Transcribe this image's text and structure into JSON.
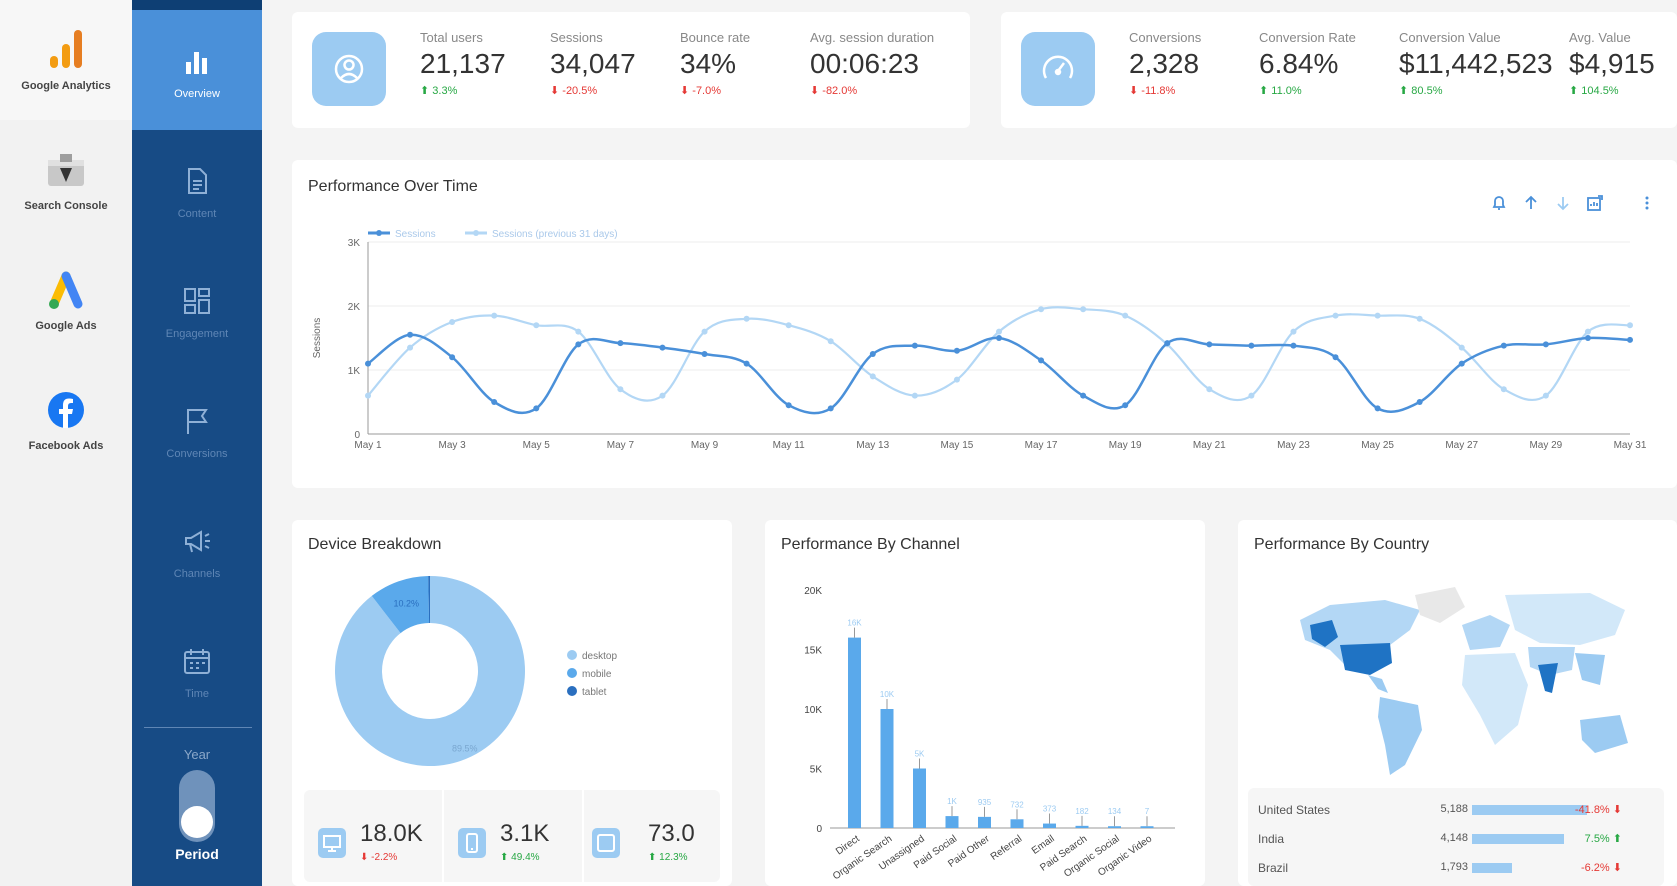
{
  "sources": [
    {
      "label": "Google Analytics",
      "icon": "google-analytics-icon"
    },
    {
      "label": "Search Console",
      "icon": "search-console-icon"
    },
    {
      "label": "Google Ads",
      "icon": "google-ads-icon"
    },
    {
      "label": "Facebook Ads",
      "icon": "facebook-icon"
    }
  ],
  "nav": [
    {
      "label": "Overview",
      "icon": "bar-chart-icon"
    },
    {
      "label": "Content",
      "icon": "document-icon"
    },
    {
      "label": "Engagement",
      "icon": "grid-icon"
    },
    {
      "label": "Conversions",
      "icon": "flag-icon"
    },
    {
      "label": "Channels",
      "icon": "megaphone-icon"
    },
    {
      "label": "Time",
      "icon": "calendar-icon"
    }
  ],
  "toggle": {
    "top_label": "Year",
    "bottom_label": "Period"
  },
  "kpis_left": [
    {
      "label": "Total users",
      "value": "21,137",
      "delta": "3.3%",
      "dir": "up"
    },
    {
      "label": "Sessions",
      "value": "34,047",
      "delta": "-20.5%",
      "dir": "down"
    },
    {
      "label": "Bounce rate",
      "value": "34%",
      "delta": "-7.0%",
      "dir": "down"
    },
    {
      "label": "Avg. session duration",
      "value": "00:06:23",
      "delta": "-82.0%",
      "dir": "down"
    }
  ],
  "kpis_right": [
    {
      "label": "Conversions",
      "value": "2,328",
      "delta": "-11.8%",
      "dir": "down"
    },
    {
      "label": "Conversion Rate",
      "value": "6.84%",
      "delta": "11.0%",
      "dir": "up"
    },
    {
      "label": "Conversion Value",
      "value": "$11,442,523",
      "delta": "80.5%",
      "dir": "up"
    },
    {
      "label": "Avg. Value",
      "value": "$4,915",
      "delta": "104.5%",
      "dir": "up"
    }
  ],
  "colors": {
    "accent": "#4a90d9",
    "light": "#b3d7f5",
    "mid": "#9ccbf2",
    "nav": "#174b85",
    "up": "#27a844",
    "down": "#e53935"
  },
  "chart_data": [
    {
      "type": "line",
      "title": "Performance Over Time",
      "ylabel": "Sessions",
      "ylim": [
        0,
        3000
      ],
      "yticks": [
        "0",
        "1K",
        "2K",
        "3K"
      ],
      "x": [
        "May 1",
        "May 2",
        "May 3",
        "May 4",
        "May 5",
        "May 6",
        "May 7",
        "May 8",
        "May 9",
        "May 10",
        "May 11",
        "May 12",
        "May 13",
        "May 14",
        "May 15",
        "May 16",
        "May 17",
        "May 18",
        "May 19",
        "May 20",
        "May 21",
        "May 22",
        "May 23",
        "May 24",
        "May 25",
        "May 26",
        "May 27",
        "May 28",
        "May 29",
        "May 30",
        "May 31"
      ],
      "xticks": [
        "May 1",
        "May 3",
        "May 5",
        "May 7",
        "May 9",
        "May 11",
        "May 13",
        "May 15",
        "May 17",
        "May 19",
        "May 21",
        "May 23",
        "May 25",
        "May 27",
        "May 29",
        "May 31"
      ],
      "legend": "top-left",
      "grid": true,
      "series": [
        {
          "name": "Sessions",
          "color": "#4a90d9",
          "values": [
            1100,
            1550,
            1200,
            500,
            400,
            1400,
            1420,
            1350,
            1250,
            1100,
            450,
            400,
            1250,
            1380,
            1300,
            1500,
            1150,
            600,
            450,
            1420,
            1400,
            1380,
            1380,
            1200,
            400,
            500,
            1100,
            1380,
            1400,
            1500,
            1470
          ]
        },
        {
          "name": "Sessions (previous 31 days)",
          "color": "#b3d7f5",
          "values": [
            600,
            1350,
            1750,
            1850,
            1700,
            1600,
            700,
            600,
            1600,
            1800,
            1700,
            1450,
            900,
            600,
            850,
            1600,
            1950,
            1950,
            1850,
            1400,
            700,
            600,
            1600,
            1850,
            1850,
            1800,
            1350,
            700,
            600,
            1600,
            1700
          ]
        }
      ]
    },
    {
      "type": "pie",
      "title": "Device Breakdown",
      "legend": "right",
      "labels": [
        "desktop",
        "mobile",
        "tablet"
      ],
      "values": [
        89.5,
        10.2,
        0.3
      ],
      "slice_labels": [
        "89.5%",
        "10.2%",
        ""
      ],
      "colors": [
        "#9ccbf2",
        "#5aa9eb",
        "#2a6fbf"
      ]
    },
    {
      "type": "bar",
      "title": "Performance By Channel",
      "ylim": [
        0,
        20000
      ],
      "yticks": [
        "0",
        "5K",
        "10K",
        "15K",
        "20K"
      ],
      "categories": [
        "Direct",
        "Organic Search",
        "Unassigned",
        "Paid Social",
        "Paid Other",
        "Referral",
        "Email",
        "Paid Search",
        "Organic Social",
        "Organic Video"
      ],
      "values": [
        16000,
        10000,
        5000,
        1000,
        935,
        732,
        373,
        182,
        134,
        7
      ],
      "labels": [
        "16K",
        "10K",
        "5K",
        "1K",
        "935",
        "732",
        "373",
        "182",
        "134",
        "7"
      ]
    }
  ],
  "devices": [
    {
      "value": "18.0K",
      "delta": "-2.2%",
      "dir": "down",
      "icon": "desktop-icon"
    },
    {
      "value": "3.1K",
      "delta": "49.4%",
      "dir": "up",
      "icon": "mobile-icon"
    },
    {
      "value": "73.0",
      "delta": "12.3%",
      "dir": "up",
      "icon": "tablet-icon"
    }
  ],
  "country": {
    "title": "Performance By Country",
    "rows": [
      {
        "name": "United States",
        "value": "5,188",
        "share": 1.0,
        "delta": "-41.8%",
        "dir": "down"
      },
      {
        "name": "India",
        "value": "4,148",
        "share": 0.8,
        "delta": "7.5%",
        "dir": "up"
      },
      {
        "name": "Brazil",
        "value": "1,793",
        "share": 0.35,
        "delta": "-6.2%",
        "dir": "down"
      }
    ]
  }
}
